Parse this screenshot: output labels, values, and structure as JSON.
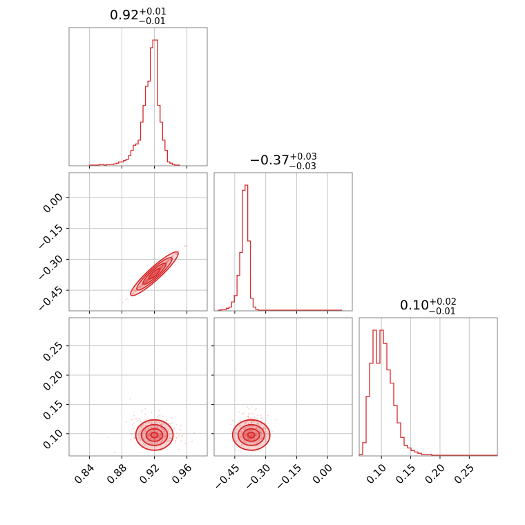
{
  "chart_data": {
    "type": "corner",
    "color": "#d62728",
    "grid": true,
    "parameters": [
      {
        "median": "0.92",
        "upper_err": "+0.01",
        "lower_err": "−0.01",
        "range": [
          0.815,
          0.985
        ],
        "ticks": [
          0.84,
          0.88,
          0.92,
          0.96
        ],
        "ticklabels": [
          "0.84",
          "0.88",
          "0.92",
          "0.96"
        ]
      },
      {
        "median": "−0.37",
        "upper_err": "+0.03",
        "lower_err": "−0.03",
        "range": [
          -0.55,
          0.12
        ],
        "ticks": [
          -0.45,
          -0.3,
          -0.15,
          0.0
        ],
        "ticklabels": [
          "−0.45",
          "−0.30",
          "−0.15",
          "0.00"
        ]
      },
      {
        "median": "0.10",
        "upper_err": "+0.02",
        "lower_err": "−0.01",
        "range": [
          0.062,
          0.298
        ],
        "ticks": [
          0.1,
          0.15,
          0.2,
          0.25
        ],
        "ticklabels": [
          "0.10",
          "0.15",
          "0.20",
          "0.25"
        ]
      }
    ],
    "histograms": [
      {
        "bin_start": 0.84,
        "bin_width": 0.003,
        "counts": [
          0.5,
          0.5,
          0.5,
          0.5,
          1,
          1,
          0.5,
          1,
          1,
          1,
          1.5,
          2,
          3,
          3,
          4,
          5,
          8,
          12,
          16,
          17,
          20,
          34,
          47,
          62,
          66,
          92,
          98,
          98,
          47,
          34,
          20,
          12,
          3,
          2,
          1,
          0.5,
          0.5
        ]
      },
      {
        "bin_start": -0.53,
        "bin_width": 0.013,
        "counts": [
          0.5,
          1,
          1,
          2,
          3,
          7,
          12,
          28,
          46,
          95,
          99,
          55,
          10,
          3,
          1,
          0.5,
          0.5,
          0.5,
          0.5,
          0.5,
          0.5,
          0.5,
          0.5,
          0.5,
          0.5,
          0.5,
          0.5,
          0.5,
          0.5,
          0.5,
          0.5,
          0.5,
          0.5,
          0.5,
          0.5,
          0.5,
          0.5,
          0.5,
          0.5,
          0.5,
          0.5,
          0.5,
          0.5,
          0.5,
          0.5,
          0.5
        ]
      },
      {
        "bin_start": 0.062,
        "bin_width": 0.0059,
        "counts": [
          1,
          10,
          45,
          70,
          95,
          70,
          95,
          85,
          65,
          55,
          38,
          25,
          14,
          8,
          6,
          4,
          3,
          2,
          1,
          1,
          1,
          0.5,
          0.5,
          0.5,
          0.5,
          0.5,
          0.5,
          0.5,
          0.5,
          0.5,
          0.5,
          0.5,
          0.5,
          0.5,
          0.5,
          0.5,
          0.5,
          0.5,
          0.5,
          0.5
        ]
      }
    ],
    "correlations": [
      {
        "x_param": 0,
        "y_param": 1,
        "slope": 3.6
      },
      {
        "x_param": 0,
        "y_param": 2,
        "slope": 0
      },
      {
        "x_param": 1,
        "y_param": 2,
        "slope": 0
      }
    ],
    "scatter_spread": [
      0.012,
      0.03,
      0.012
    ]
  }
}
